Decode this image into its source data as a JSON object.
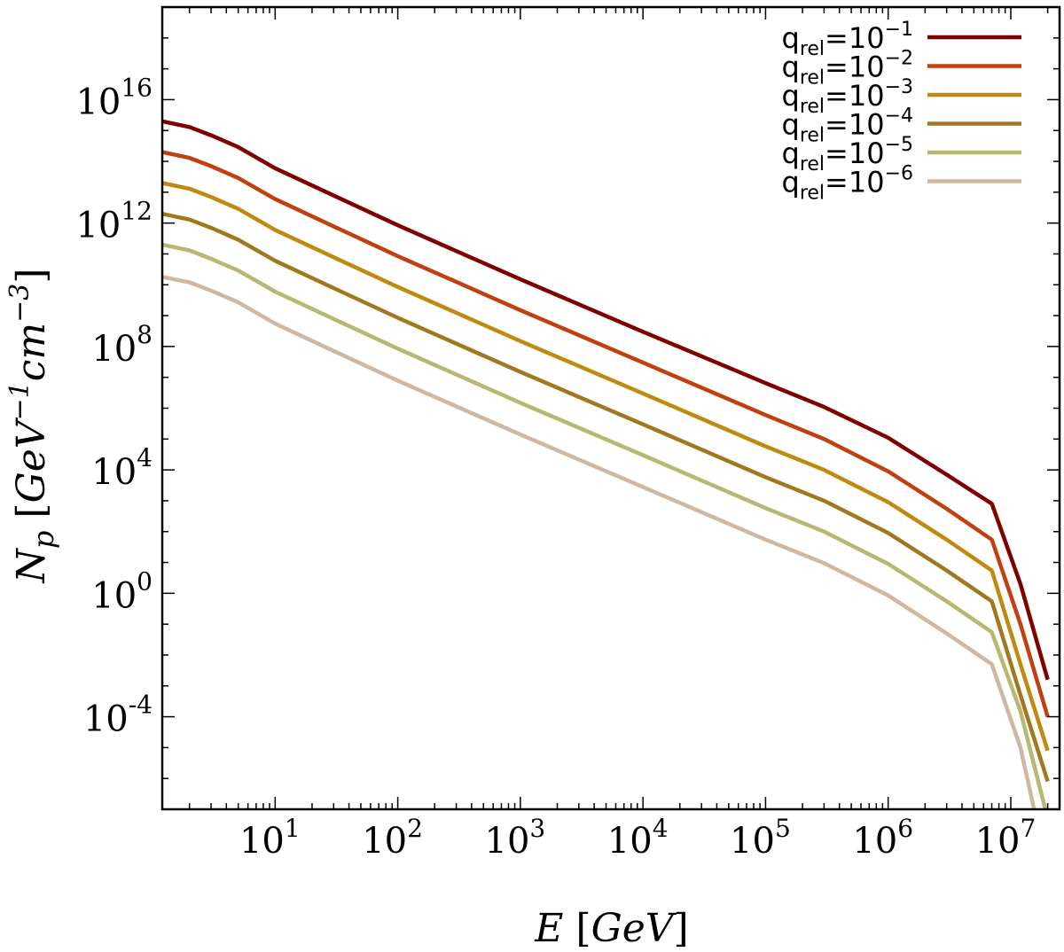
{
  "chart_data": {
    "type": "line",
    "xscale": "log",
    "yscale": "log",
    "xlim": [
      1.2,
      25000000
    ],
    "ylim": [
      1e-07,
      1e+19
    ],
    "xlabel": "E [GeV]",
    "ylabel": "N_p [GeV^-1 cm^-3]",
    "grid": false,
    "legend_position": "top-right",
    "x_ticks": [
      {
        "base": "10",
        "exp": "1",
        "value": 10
      },
      {
        "base": "10",
        "exp": "2",
        "value": 100
      },
      {
        "base": "10",
        "exp": "3",
        "value": 1000
      },
      {
        "base": "10",
        "exp": "4",
        "value": 10000
      },
      {
        "base": "10",
        "exp": "5",
        "value": 100000
      },
      {
        "base": "10",
        "exp": "6",
        "value": 1000000
      },
      {
        "base": "10",
        "exp": "7",
        "value": 10000000
      }
    ],
    "y_ticks": [
      {
        "base": "10",
        "exp": "-4",
        "value": 0.0001
      },
      {
        "base": "10",
        "exp": "0",
        "value": 1
      },
      {
        "base": "10",
        "exp": "4",
        "value": 10000
      },
      {
        "base": "10",
        "exp": "8",
        "value": 100000000
      },
      {
        "base": "10",
        "exp": "12",
        "value": 1000000000000
      },
      {
        "base": "10",
        "exp": "16",
        "value": 1e+16
      }
    ],
    "x": [
      1.2,
      2,
      3,
      5,
      10,
      30,
      100,
      1000,
      10000,
      100000,
      300000,
      1000000,
      3000000,
      7000000,
      12000000,
      20000000
    ],
    "series": [
      {
        "name": "q_rel=10^-1",
        "label_main": "q",
        "label_sub": "rel",
        "label_mid": "=10",
        "label_sup": "−1",
        "color": "#7f0000",
        "values": [
          2000000000000000.0,
          1300000000000000.0,
          700000000000000.0,
          290000000000000.0,
          60000000000000.0,
          7800000000000.0,
          850000000000.0,
          15000000000.0,
          300000000.0,
          6500000.0,
          1100000.0,
          110000.0,
          7000.0,
          800.0,
          2.0,
          0.0016
        ]
      },
      {
        "name": "q_rel=10^-2",
        "label_main": "q",
        "label_sub": "rel",
        "label_mid": "=10",
        "label_sup": "−2",
        "color": "#c04010",
        "values": [
          200000000000000.0,
          130000000000000.0,
          70000000000000.0,
          29000000000000.0,
          6000000000000.0,
          780000000000.0,
          85000000000.0,
          1500000000.0,
          30000000.0,
          600000.0,
          100000.0,
          9000.0,
          550.0,
          55.0,
          0.1,
          0.0001
        ]
      },
      {
        "name": "q_rel=10^-3",
        "label_main": "q",
        "label_sub": "rel",
        "label_mid": "=10",
        "label_sup": "−3",
        "color": "#c08a10",
        "values": [
          20000000000000.0,
          13000000000000.0,
          7000000000000.0,
          2900000000000.0,
          600000000000.0,
          78000000000.0,
          8500000000.0,
          150000000.0,
          3000000.0,
          58000.0,
          10000.0,
          900.0,
          55.0,
          5.5,
          0.005,
          8e-06
        ]
      },
      {
        "name": "q_rel=10^-4",
        "label_main": "q",
        "label_sub": "rel",
        "label_mid": "=10",
        "label_sup": "−4",
        "color": "#a07820",
        "values": [
          2000000000000.0,
          1300000000000.0,
          700000000000.0,
          290000000000.0,
          60000000000.0,
          7800000000.0,
          850000000.0,
          15000000.0,
          300000.0,
          5800.0,
          1000.0,
          90.0,
          5.5,
          0.55,
          0.0005,
          8e-07
        ]
      },
      {
        "name": "q_rel=10^-5",
        "label_main": "q",
        "label_sub": "rel",
        "label_mid": "=10",
        "label_sup": "−5",
        "color": "#b8b870",
        "values": [
          200000000000.0,
          130000000000.0,
          70000000000.0,
          29000000000.0,
          6000000000.0,
          780000000.0,
          85000000.0,
          1500000.0,
          30000.0,
          580.0,
          100.0,
          9.0,
          0.55,
          0.055,
          0.00015,
          5e-08
        ]
      },
      {
        "name": "q_rel=10^-6",
        "label_main": "q",
        "label_sub": "rel",
        "label_mid": "=10",
        "label_sup": "−6",
        "color": "#d0b8a0",
        "values": [
          18000000000.0,
          12000000000.0,
          6500000000.0,
          2700000000.0,
          550000000.0,
          72000000.0,
          7800000.0,
          140000.0,
          2800.0,
          55.0,
          9.5,
          0.85,
          0.05,
          0.005,
          1e-05,
          1e-09
        ]
      }
    ]
  }
}
